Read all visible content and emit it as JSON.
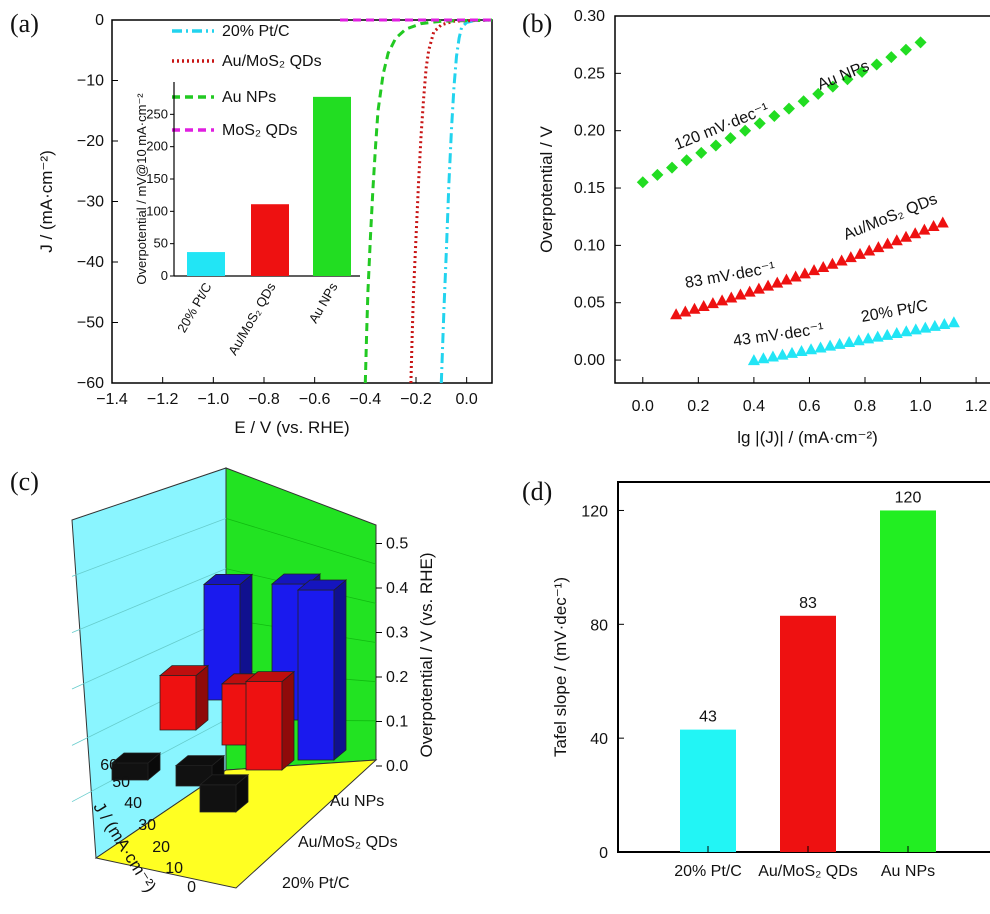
{
  "panels": [
    "(a)",
    "(b)",
    "(c)",
    "(d)"
  ],
  "chart_data": [
    {
      "panel": "(a)",
      "type": "line",
      "xlabel": "E / V (vs. RHE)",
      "ylabel": "J / (mA·cm⁻²)",
      "xlim": [
        -1.4,
        0.1
      ],
      "ylim": [
        -60,
        0
      ],
      "xticks": [
        "−1.4",
        "−1.2",
        "−1.0",
        "−0.8",
        "−0.6",
        "−0.4",
        "−0.2",
        "0.0"
      ],
      "yticks": [
        "0",
        "−10",
        "−20",
        "−30",
        "−40",
        "−50",
        "−60"
      ],
      "legend": [
        {
          "label": "20% Pt/C",
          "color": "#22d3ee",
          "style": "dash-dot"
        },
        {
          "label": "Au/MoS₂ QDs",
          "color": "#c81414",
          "style": "dotted"
        },
        {
          "label": "Au NPs",
          "color": "#22c922",
          "style": "dashed"
        },
        {
          "label": "MoS₂ QDs",
          "color": "#e01ee0",
          "style": "dashed"
        }
      ],
      "series": [
        {
          "name": "20% Pt/C",
          "x": [
            -0.1,
            -0.095,
            -0.09,
            -0.08,
            -0.07,
            -0.06,
            -0.05,
            -0.04,
            -0.03,
            -0.02,
            0.0,
            0.03,
            0.1
          ],
          "y": [
            -60,
            -54,
            -48,
            -38,
            -27,
            -18,
            -11,
            -6,
            -3,
            -1.2,
            -0.4,
            -0.1,
            0
          ]
        },
        {
          "name": "Au/MoS₂ QDs",
          "x": [
            -0.22,
            -0.215,
            -0.21,
            -0.2,
            -0.19,
            -0.18,
            -0.17,
            -0.16,
            -0.15,
            -0.13,
            -0.1,
            -0.05,
            0.1
          ],
          "y": [
            -60,
            -52,
            -45,
            -36,
            -27,
            -19,
            -13,
            -8,
            -5,
            -2,
            -0.8,
            -0.2,
            0
          ]
        },
        {
          "name": "Au NPs",
          "x": [
            -0.4,
            -0.395,
            -0.39,
            -0.38,
            -0.37,
            -0.36,
            -0.35,
            -0.33,
            -0.31,
            -0.28,
            -0.24,
            -0.18,
            -0.1,
            0.1
          ],
          "y": [
            -60,
            -52,
            -45,
            -36,
            -28,
            -21,
            -15,
            -9,
            -5.5,
            -3,
            -1.5,
            -0.6,
            -0.2,
            0
          ]
        },
        {
          "name": "MoS₂ QDs",
          "x": [
            -0.5,
            -0.3,
            -0.1,
            0.1
          ],
          "y": [
            0,
            0,
            0,
            0
          ]
        }
      ],
      "inset": {
        "type": "bar",
        "ylabel": "Overpotential / mV@10 mA·cm⁻²",
        "ylim": [
          0,
          300
        ],
        "yticks": [
          "0",
          "50",
          "100",
          "150",
          "200",
          "250"
        ],
        "categories": [
          "20% Pt/C",
          "Au/MoS₂ QDs",
          "Au NPs"
        ],
        "values": [
          37,
          111,
          277
        ],
        "colors": [
          "#22e5f5",
          "#ee1111",
          "#22dd22"
        ]
      }
    },
    {
      "panel": "(b)",
      "type": "scatter",
      "xlabel": "lg |(J)| / (mA·cm⁻²)",
      "ylabel": "Overpotential / V",
      "xlim": [
        -0.1,
        1.25
      ],
      "ylim": [
        -0.02,
        0.3
      ],
      "xticks": [
        "0.0",
        "0.2",
        "0.4",
        "0.6",
        "0.8",
        "1.0",
        "1.2"
      ],
      "yticks": [
        "0.00",
        "0.05",
        "0.10",
        "0.15",
        "0.20",
        "0.25",
        "0.30"
      ],
      "series": [
        {
          "name": "Au NPs",
          "slope_label": "120 mV·dec⁻¹",
          "color": "#22dd22",
          "marker": "diamond",
          "x_range": [
            0.0,
            1.0
          ],
          "y_range": [
            0.155,
            0.277
          ],
          "n": 20
        },
        {
          "name": "Au/MoS₂ QDs",
          "slope_label": "83 mV·dec⁻¹",
          "color": "#ee1111",
          "marker": "triangle",
          "x_range": [
            0.12,
            1.08
          ],
          "y_range": [
            0.04,
            0.12
          ],
          "n": 30
        },
        {
          "name": "20% Pt/C",
          "slope_label": "43 mV·dec⁻¹",
          "color": "#22e5f5",
          "marker": "triangle",
          "x_range": [
            0.4,
            1.12
          ],
          "y_range": [
            0.0,
            0.033
          ],
          "n": 22
        }
      ]
    },
    {
      "panel": "(c)",
      "type": "bar3d",
      "zlabel": "Overpotential / V (vs. RHE)",
      "ylabel": "J / (mA·cm⁻²)",
      "zticks": [
        "0.0",
        "0.1",
        "0.2",
        "0.3",
        "0.4",
        "0.5"
      ],
      "yticks": [
        "0",
        "10",
        "20",
        "30",
        "40",
        "50",
        "60"
      ],
      "categories": [
        "20% Pt/C",
        "Au/MoS₂ QDs",
        "Au NPs"
      ],
      "current_densities": [
        10,
        30,
        50
      ],
      "values": {
        "20% Pt/C": [
          0.05,
          0.06,
          0.08
        ],
        "Au/MoS₂ QDs": [
          0.16,
          0.18,
          0.26
        ],
        "Au NPs": [
          0.34,
          0.4,
          0.5
        ]
      },
      "colors": {
        "20% Pt/C": "#111111",
        "Au/MoS₂ QDs": "#ee1111",
        "Au NPs": "#1a1aee"
      }
    },
    {
      "panel": "(d)",
      "type": "bar",
      "ylabel": "Tafel slope / (mV·dec⁻¹)",
      "ylim": [
        0,
        130
      ],
      "yticks": [
        "0",
        "40",
        "80",
        "120"
      ],
      "categories": [
        "20% Pt/C",
        "Au/MoS₂ QDs",
        "Au NPs"
      ],
      "values": [
        43,
        83,
        120
      ],
      "value_labels": [
        "43",
        "83",
        "120"
      ],
      "colors": [
        "#22f5f5",
        "#ee1111",
        "#22ee22"
      ]
    }
  ]
}
